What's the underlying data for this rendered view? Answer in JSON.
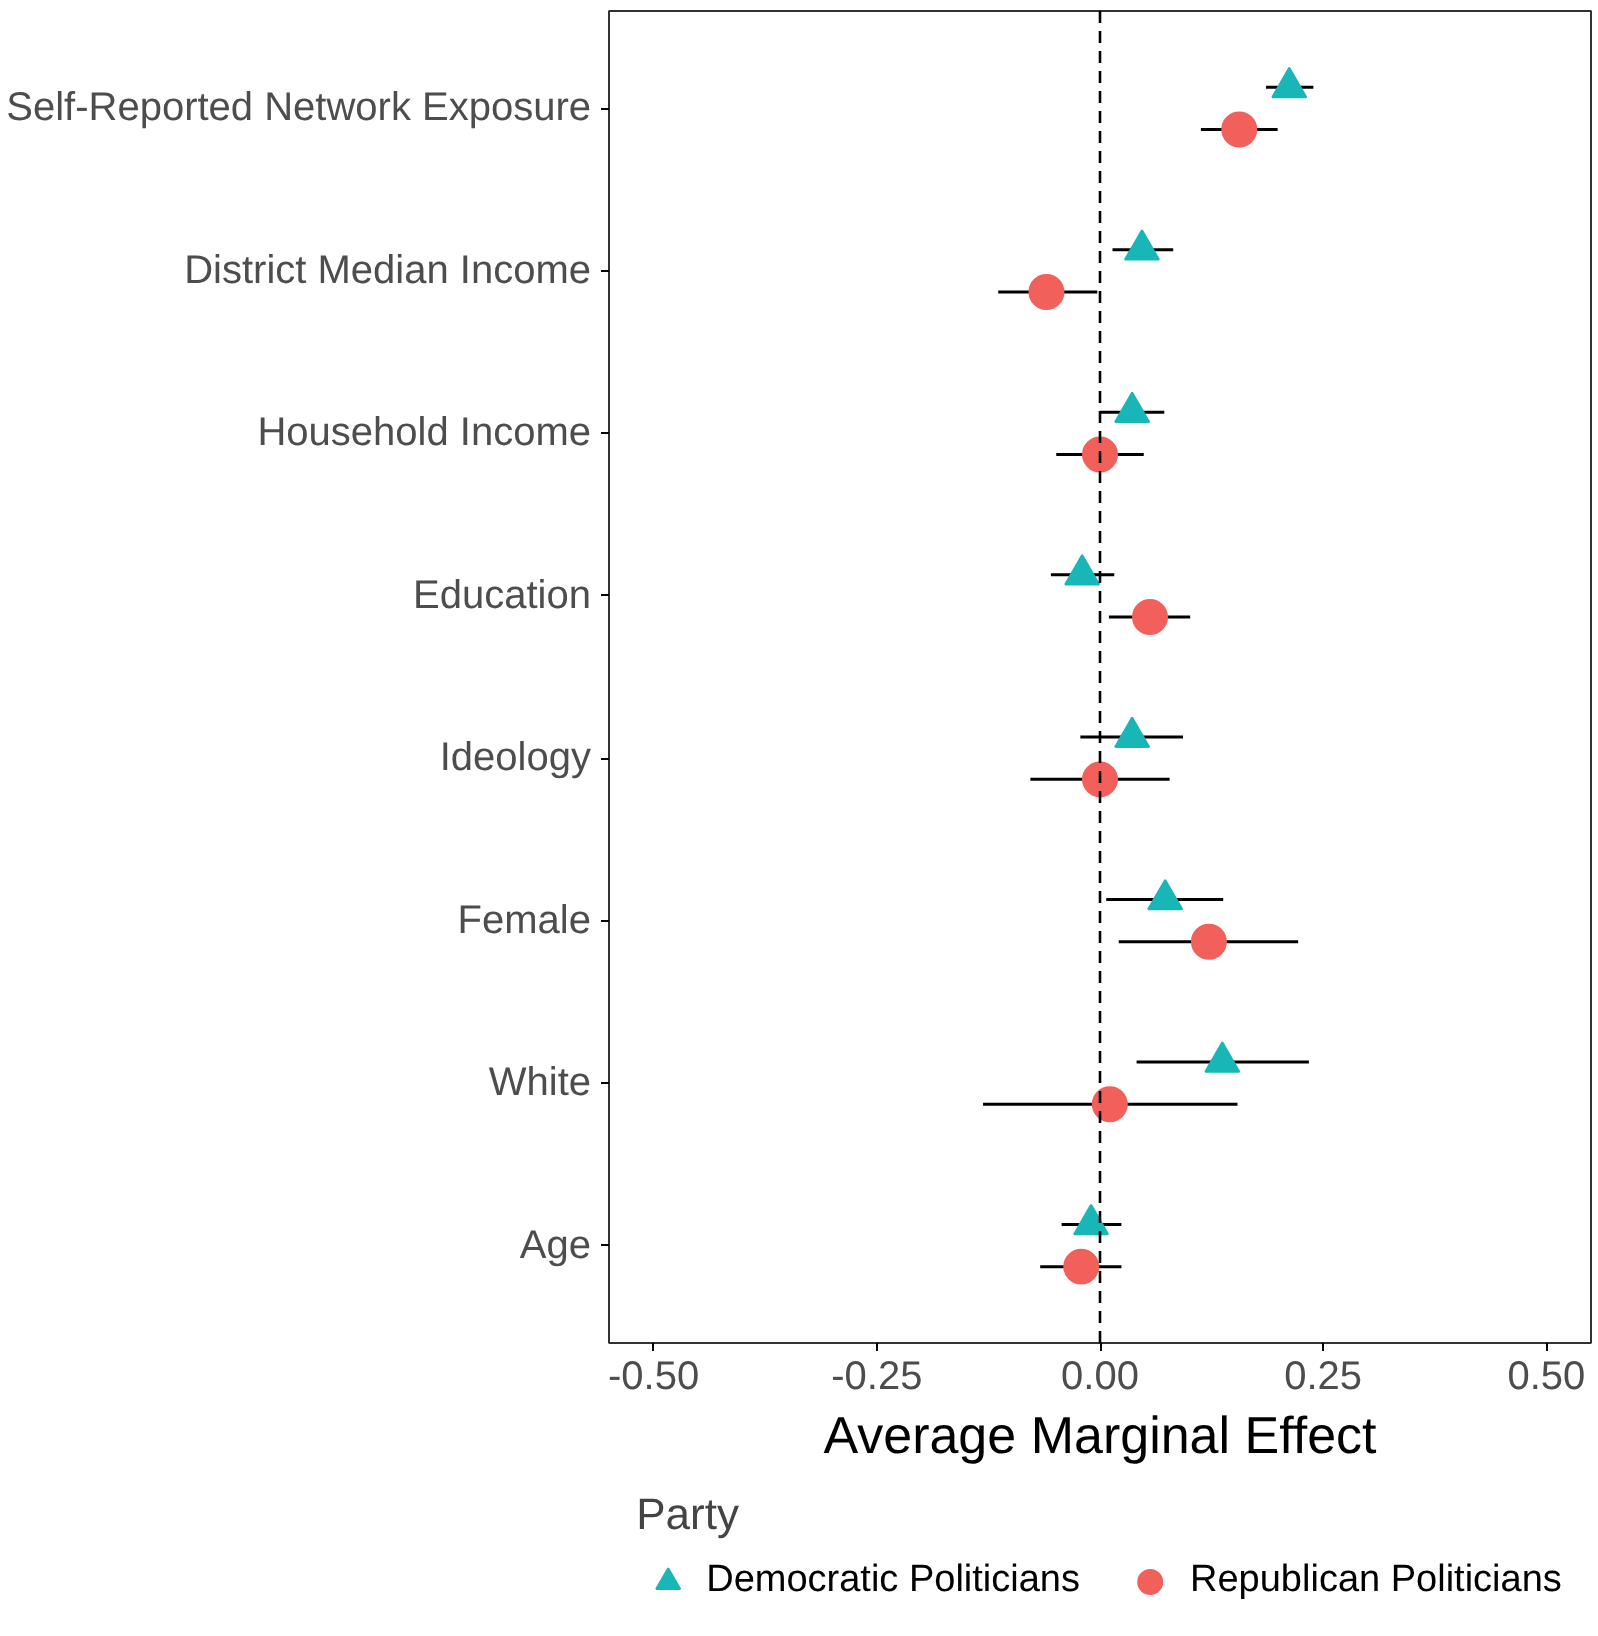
{
  "chart_data": {
    "type": "scatter",
    "xlabel": "Average Marginal Effect",
    "legend_title": "Party",
    "orientation": "horizontal",
    "categories": [
      "Self-Reported Network Exposure",
      "District Median Income",
      "Household Income",
      "Education",
      "Ideology",
      "Female",
      "White",
      "Age"
    ],
    "xlim": [
      -0.55,
      0.55
    ],
    "xticks": [
      {
        "value": -0.5,
        "label": "-0.50"
      },
      {
        "value": -0.25,
        "label": "-0.25"
      },
      {
        "value": 0,
        "label": "0.00"
      },
      {
        "value": 0.25,
        "label": "0.25"
      },
      {
        "value": 0.5,
        "label": "0.50"
      }
    ],
    "grid": false,
    "legend": "bottom",
    "ref_lines": [
      {
        "axis": "x",
        "value": 0,
        "line_style": "dashed",
        "color": "#000000"
      }
    ],
    "series": [
      {
        "name": "Democratic Politicians",
        "color": "#19b6b7",
        "marker": "triangle",
        "values": [
          0.212,
          0.047,
          0.036,
          -0.02,
          0.036,
          0.073,
          0.137,
          -0.01
        ],
        "errors": [
          [
            0.186,
            0.239
          ],
          [
            0.014,
            0.082
          ],
          [
            0.0,
            0.072
          ],
          [
            -0.055,
            0.016
          ],
          [
            -0.022,
            0.093
          ],
          [
            0.007,
            0.138
          ],
          [
            0.041,
            0.234
          ],
          [
            -0.043,
            0.024
          ]
        ]
      },
      {
        "name": "Republican Politicians",
        "color": "#f2605c",
        "marker": "circle",
        "values": [
          0.156,
          -0.06,
          0.0,
          0.056,
          0.0,
          0.122,
          0.011,
          -0.021
        ],
        "errors": [
          [
            0.113,
            0.199
          ],
          [
            -0.114,
            -0.003
          ],
          [
            -0.049,
            0.049
          ],
          [
            0.01,
            0.101
          ],
          [
            -0.078,
            0.078
          ],
          [
            0.021,
            0.222
          ],
          [
            -0.131,
            0.154
          ],
          [
            -0.067,
            0.024
          ]
        ]
      }
    ]
  }
}
